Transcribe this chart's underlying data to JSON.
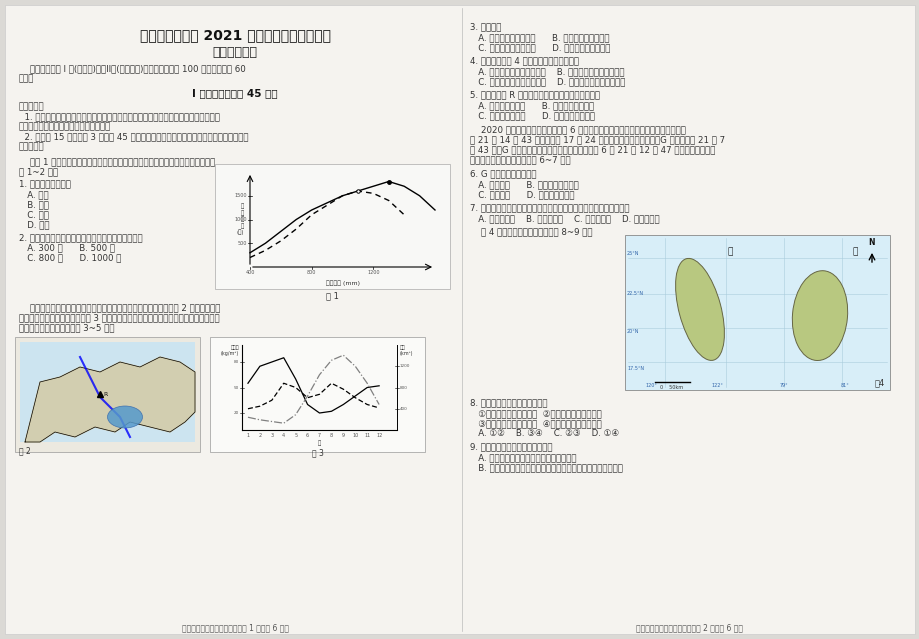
{
  "bg_color": "#dbd9d5",
  "page_bg": "#f5f3ef",
  "title1": "天津市耀华中学 2021 届高三年级第一次月考",
  "title2": "地理学科试卷",
  "intro_lines": [
    "    本试卷分为第 I 卷(选择题)和第II卷(非选择题)两部分，满分为 100 分，考试用时 60",
    "分钟。"
  ],
  "section1": "I 卷（选择题，共 45 分）",
  "notes_title": "注意事项：",
  "note1_lines": [
    "  1. 每小题选出答案后，用铅笔把地理答题卡上对应题目的答案标号涂黑。如需改动，",
    "用橡皮擦干净后，再选涂其他答案标号。"
  ],
  "note2_lines": [
    "  2. 本卷共 15 题，每题 3 分，共 45 分。在每题列出的四个选项中，只有一项是最符合题",
    "目要求的。"
  ],
  "intro2_lines": [
    "    读图 1 我国某山地西坡（实线）和东坡（虚线）年降水量随高度变化示意图，回",
    "答 1~2 题。"
  ],
  "q1": "1. 该山地最可能位于",
  "q1a": "   A. 湖南",
  "q1b": "   B. 上海",
  "q1c": "   C. 青海",
  "q1d": "   D. 河北",
  "q2": "2. 该山东、西坡降水量相差最大处的海拔高度大约是",
  "q2a": "   A. 300 米      B. 500 米",
  "q2b": "   C. 800 米      D. 1000 米",
  "fig1_label": "图 1",
  "para3_lines": [
    "    洞里萨湖位于湄公河下游平原，其水文特征深受湄公河的影响。图 2 示意湄公河流",
    "域部分地区及洞里萨湖位置。图 3 示意洞里萨湖主湖区与洪泛区含沙量和湖水多年平均",
    "体积的季节变化。据此完成 3~5 题。"
  ],
  "fig2_label": "图 2",
  "fig3_label": "图 3",
  "footer_left": "高三第一次月考地理学科试卷第 1 页（共 6 页）",
  "q3": "3. 洞里萨湖",
  "q3a": "   A. 雨季湖水含沙量增大      B. 热季洪泛区面积最大",
  "q3b": "   C. 旱季主湖区输沙量大      D. 湖面面积季节变化大",
  "q4": "4. 影响洞里萨湖 4 月含沙量大的主要原因是",
  "q4a": "   A. 湖面风较大、湖泊水位低    B. 湖水流速快、流域降水少",
  "q4b": "   C. 湖水流速慢、湖泊水位低    D. 湖面风较大、流域降水多",
  "q5": "5. 若在湄公河 R 处修建大型水利工程将导致洞里萨湖",
  "q5a": "   A. 生物多样性增加      B. 泥沙淤积总量减少",
  "q5b": "   C. 洪泛区面积扩大      D. 水温年际变化减小",
  "para6_lines": [
    "    2020 年最有看点的天象是发生在 6 月份的日环食。我国厦门市日环食开始于北京时",
    "间 21 日 14 时 43 分，结束于 17 时 24 分，当厦门日环食开始时，G 国的区时为 21 日 7",
    "时 43 分。G 国北邻地区此次日环食开始于北京时间 6 月 21 日 12 时 47 分，当地观测者可",
    "以看到环食日出的奇景。回答 6~7 题。"
  ],
  "q6": "6. G 国北部的植被类型为",
  "q6a": "   A. 热带荒漠      B. 亚热带常绿阔叶林",
  "q6b": "   C. 热带雨林      D. 温带落叶阔叶林",
  "q7": "7. 厦门观测者观测过程中应如何调整天文望远镜镜筒的朝向和高度？",
  "q7a": "   A. 向东、升高    B. 向东、降低    C. 向西、升高    D. 向西、降低",
  "para8": "    图 4 是世界两岛屿图，读图完成 8~9 题。",
  "q8": "8. 关于两岛屿的说法，正确的是",
  "q8a": "   ①两岛山脉走向大致相同  ②两岛地形都是东陡西缓",
  "q8b": "   ③甲岛的比例尺小于乙岛  ④两岛都处于板块边界处",
  "q8c": "   A. ①②    B. ③④    C. ②③    D. ①④",
  "q9": "9. 关于两岛气候的叙述，错误的是",
  "q9a": "   A. 甲岛东部受地形和暖流影响，降水丰富",
  "q9b": "   B. 乙岛东部受信风和暖流影响，降水丰富，形成热带雨林气候",
  "fig4_label": "图4",
  "footer_right": "高三第一次月考地理学科试卷第 2 页（共 6 页）"
}
